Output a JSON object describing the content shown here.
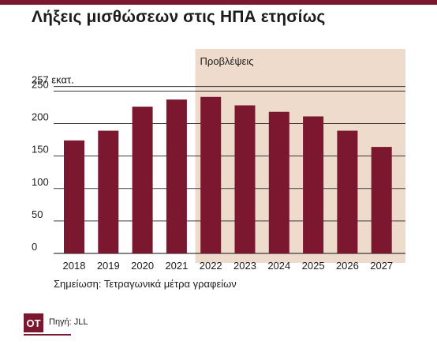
{
  "title": "Λήξεις μισθώσεων στις ΗΠΑ ετησίως",
  "note": "Σημείωση: Τετραγωνικά μέτρα γραφείων",
  "source": "Πηγή: JLL",
  "logo_text": "OT",
  "colors": {
    "bar": "#7b1830",
    "forecast_band": "#eedbcb",
    "brand": "#7b1830"
  },
  "chart_data": {
    "type": "bar",
    "title": "Λήξεις μισθώσεων στις ΗΠΑ ετησίως",
    "categories": [
      "2018",
      "2019",
      "2020",
      "2021",
      "2022",
      "2023",
      "2024",
      "2025",
      "2026",
      "2027"
    ],
    "values": [
      174,
      189,
      226,
      237,
      241,
      228,
      218,
      211,
      189,
      164
    ],
    "ylim": [
      0,
      257
    ],
    "yticks": [
      {
        "value": 0,
        "label": "0"
      },
      {
        "value": 50,
        "label": "50"
      },
      {
        "value": 100,
        "label": "100"
      },
      {
        "value": 150,
        "label": "150"
      },
      {
        "value": 200,
        "label": "200"
      },
      {
        "value": 250,
        "label": "250"
      },
      {
        "value": 257,
        "label": "257 εκατ."
      }
    ],
    "grid": true,
    "forecast": {
      "label": "Προβλέψεις",
      "from": "2022",
      "to": "2027"
    }
  }
}
